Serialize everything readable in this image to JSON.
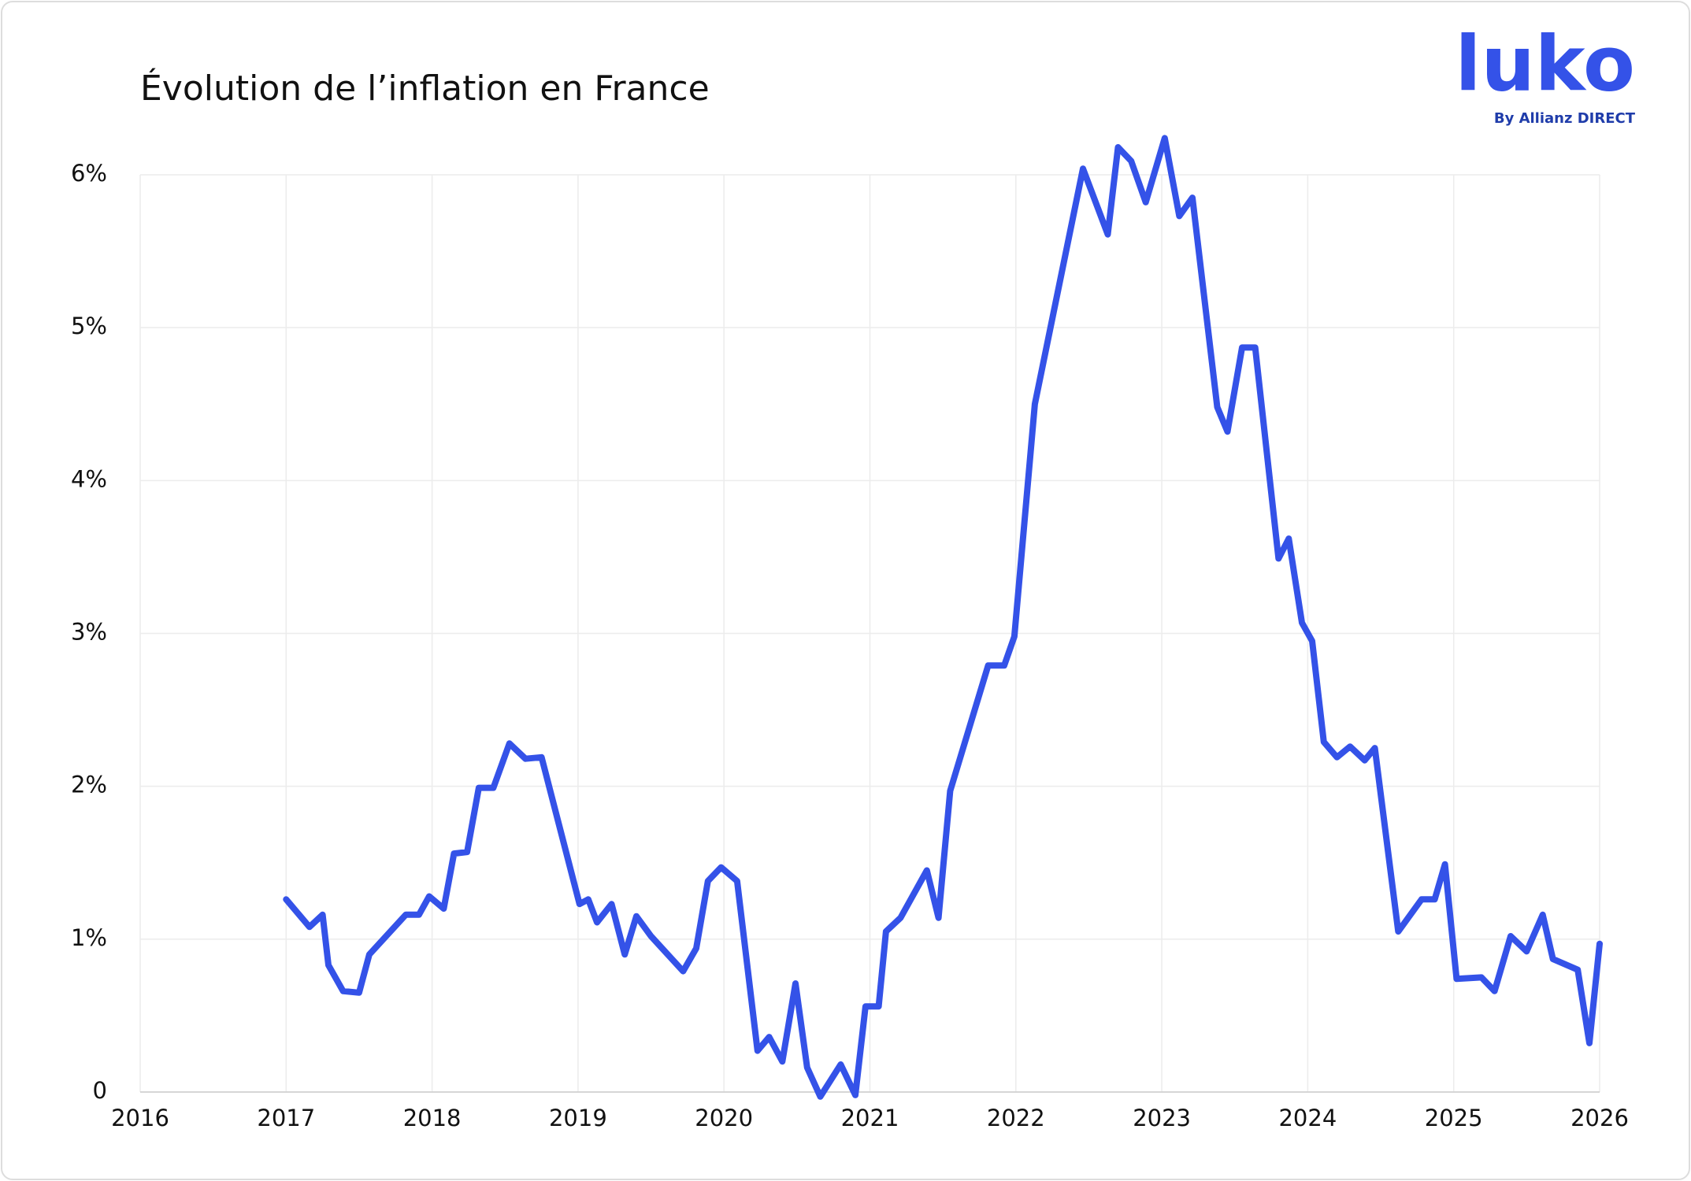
{
  "chart_data": {
    "type": "line",
    "title": "Évolution de l’inflation en France",
    "logo": {
      "name": "luko",
      "tagline": "By Allianz DIRECT"
    },
    "x": [
      2017.0,
      2017.16,
      2017.25,
      2017.29,
      2017.39,
      2017.5,
      2017.57,
      2017.82,
      2017.91,
      2017.98,
      2018.08,
      2018.15,
      2018.24,
      2018.32,
      2018.42,
      2018.53,
      2018.64,
      2018.75,
      2019.01,
      2019.07,
      2019.13,
      2019.23,
      2019.32,
      2019.4,
      2019.5,
      2019.72,
      2019.81,
      2019.89,
      2019.98,
      2020.09,
      2020.23,
      2020.31,
      2020.4,
      2020.49,
      2020.57,
      2020.66,
      2020.8,
      2020.9,
      2020.97,
      2021.06,
      2021.11,
      2021.21,
      2021.39,
      2021.47,
      2021.55,
      2021.81,
      2021.92,
      2021.99,
      2022.13,
      2022.46,
      2022.63,
      2022.7,
      2022.79,
      2022.89,
      2023.02,
      2023.12,
      2023.21,
      2023.38,
      2023.45,
      2023.55,
      2023.64,
      2023.8,
      2023.87,
      2023.96,
      2024.03,
      2024.11,
      2024.2,
      2024.29,
      2024.39,
      2024.46,
      2024.62,
      2024.78,
      2024.87,
      2024.94,
      2025.02,
      2025.19,
      2025.28,
      2025.39,
      2025.5,
      2025.61,
      2025.68,
      2025.85,
      2025.93,
      2026.0
    ],
    "series": [
      {
        "name": "Inflation",
        "color": "#3452e8",
        "values": [
          1.26,
          1.08,
          1.16,
          0.83,
          0.66,
          0.65,
          0.9,
          1.16,
          1.16,
          1.28,
          1.2,
          1.56,
          1.57,
          1.99,
          1.99,
          2.28,
          2.18,
          2.19,
          1.23,
          1.26,
          1.11,
          1.23,
          0.9,
          1.15,
          1.02,
          0.79,
          0.94,
          1.38,
          1.47,
          1.38,
          0.27,
          0.36,
          0.2,
          0.71,
          0.16,
          -0.03,
          0.18,
          -0.02,
          0.56,
          0.56,
          1.05,
          1.14,
          1.45,
          1.14,
          1.97,
          2.79,
          2.79,
          2.98,
          4.5,
          6.04,
          5.61,
          6.18,
          6.09,
          5.82,
          6.24,
          5.73,
          5.85,
          4.48,
          4.32,
          4.87,
          4.87,
          3.49,
          3.62,
          3.07,
          2.95,
          2.29,
          2.19,
          2.26,
          2.17,
          2.25,
          1.05,
          1.26,
          1.26,
          1.49,
          0.74,
          0.75,
          0.66,
          1.02,
          0.92,
          1.16,
          0.87,
          0.8,
          0.32,
          0.97
        ]
      }
    ],
    "xlim": [
      2016,
      2026
    ],
    "xticks": [
      2016,
      2017,
      2018,
      2019,
      2020,
      2021,
      2022,
      2023,
      2024,
      2025,
      2026
    ],
    "ylim": [
      0,
      6
    ],
    "yticks": [
      0,
      {
        "value": 1,
        "label": "1%"
      },
      {
        "value": 2,
        "label": "2%"
      },
      {
        "value": 3,
        "label": "3%"
      },
      {
        "value": 4,
        "label": "4%"
      },
      {
        "value": 5,
        "label": "5%"
      },
      {
        "value": 6,
        "label": "6%"
      }
    ],
    "grid": true
  }
}
